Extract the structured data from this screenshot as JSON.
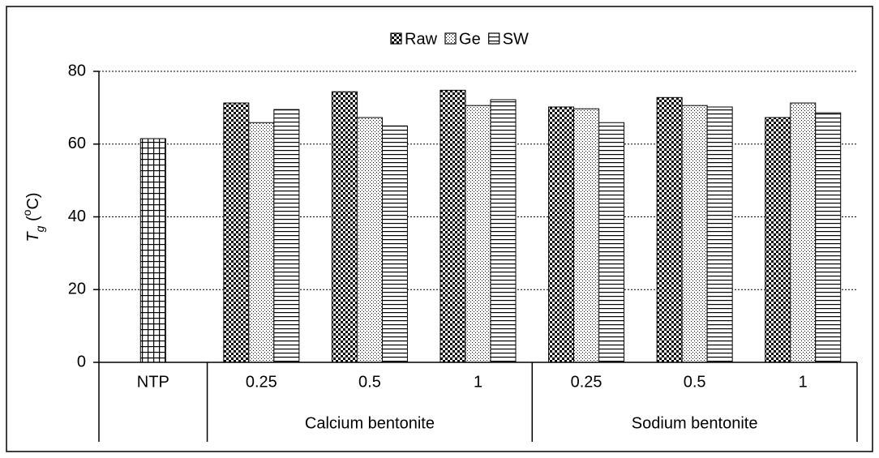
{
  "chart_data": {
    "type": "bar",
    "ylabel_parts": [
      "T",
      "g",
      " (",
      "o",
      "C)"
    ],
    "categories": [
      "NTP",
      "0.25",
      "0.5",
      "1",
      "0.25",
      "0.5",
      "1"
    ],
    "category_groups": [
      null,
      "Calcium bentonite",
      "Calcium bentonite",
      "Calcium bentonite",
      "Sodium bentonite",
      "Sodium bentonite",
      "Sodium bentonite"
    ],
    "series": [
      {
        "name": "Raw",
        "pattern": "checker",
        "values": [
          null,
          71.3,
          74.4,
          74.8,
          70.2,
          72.8,
          67.3
        ]
      },
      {
        "name": "Ge",
        "pattern": "dots",
        "values": [
          null,
          65.9,
          67.3,
          70.6,
          69.7,
          70.6,
          71.3
        ]
      },
      {
        "name": "SW",
        "pattern": "hlines",
        "values": [
          null,
          69.5,
          65.0,
          72.2,
          65.9,
          70.2,
          68.6
        ]
      },
      {
        "pattern": "grid",
        "values": [
          61.5,
          null,
          null,
          null,
          null,
          null,
          null
        ]
      }
    ],
    "ylim": [
      0,
      80
    ],
    "yticks": [
      0,
      20,
      40,
      60,
      80
    ],
    "grid": true,
    "legend": "top"
  }
}
